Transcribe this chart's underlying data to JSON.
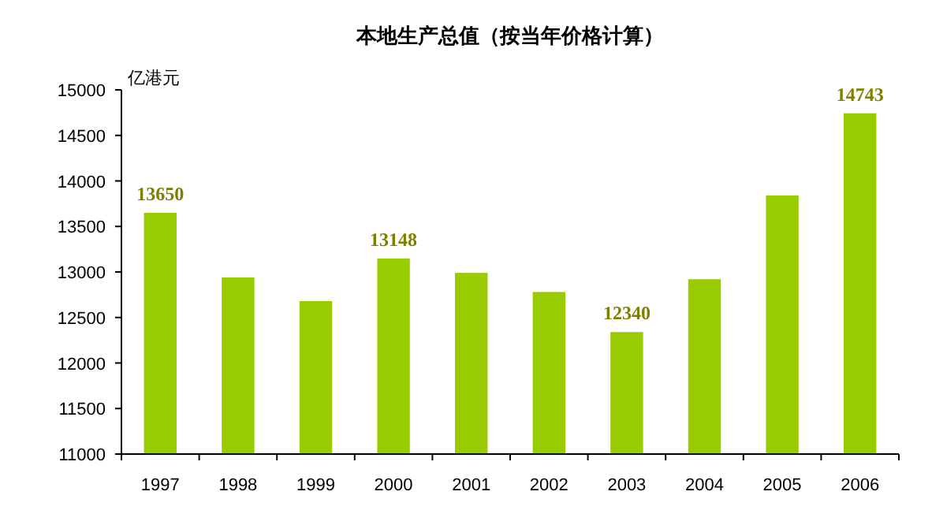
{
  "chart_data": {
    "type": "bar",
    "title": "本地生产总值（按当年价格计算）",
    "ylabel": "亿港元",
    "categories": [
      "1997",
      "1998",
      "1999",
      "2000",
      "2001",
      "2002",
      "2003",
      "2004",
      "2005",
      "2006"
    ],
    "values": [
      13650,
      12940,
      12680,
      13148,
      12990,
      12780,
      12340,
      12920,
      13840,
      14743
    ],
    "value_labels": [
      "13650",
      null,
      null,
      "13148",
      null,
      null,
      "12340",
      null,
      null,
      "14743"
    ],
    "color": "#99cc00",
    "ylim": [
      11000,
      15000
    ],
    "yticks": [
      11000,
      11500,
      12000,
      12500,
      13000,
      13500,
      14000,
      14500,
      15000
    ]
  }
}
